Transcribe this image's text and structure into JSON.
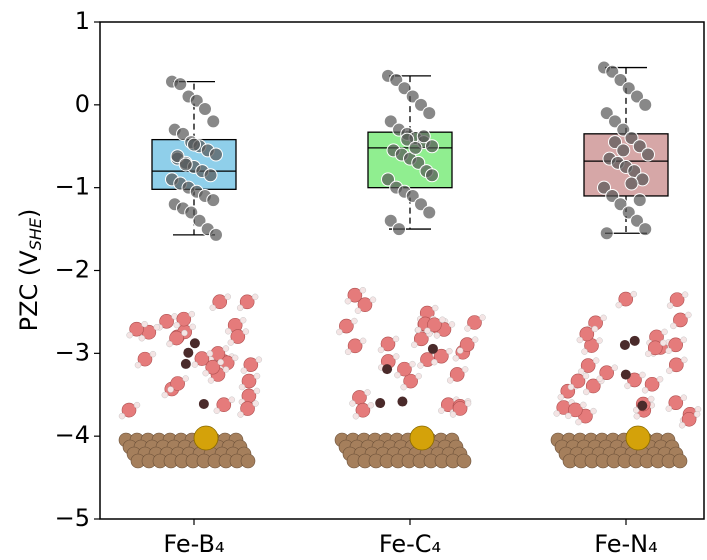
{
  "chart_data": {
    "type": "box",
    "y_label": "PZC (V",
    "y_label_sub": "SHE",
    "y_label_end": ")",
    "categories": [
      "Fe-B₄",
      "Fe-C₄",
      "Fe-N₄"
    ],
    "ylim": [
      -5,
      1
    ],
    "yticks": [
      {
        "value": -5,
        "label": "−5"
      },
      {
        "value": -4,
        "label": "−4"
      },
      {
        "value": -3,
        "label": "−3"
      },
      {
        "value": -2,
        "label": "−2"
      },
      {
        "value": -1,
        "label": "−1"
      },
      0,
      1
    ],
    "point_color": "#555555",
    "boxes": [
      {
        "color": "#8fcfea",
        "whislo": -1.57,
        "q1": -1.02,
        "med": -0.8,
        "q3": -0.42,
        "whishi": 0.28,
        "points": [
          0.28,
          0.25,
          0.1,
          0.05,
          -0.05,
          -0.2,
          -0.3,
          -0.35,
          -0.45,
          -0.5,
          -0.55,
          -0.6,
          -0.65,
          -0.7,
          -0.75,
          -0.8,
          -0.85,
          -0.9,
          -0.95,
          -1.0,
          -1.05,
          -1.1,
          -1.15,
          -1.2,
          -1.25,
          -1.3,
          -1.4,
          -1.5,
          -1.57,
          -0.62,
          -0.72,
          -0.48
        ]
      },
      {
        "color": "#90ee90",
        "whislo": -1.5,
        "q1": -1.0,
        "med": -0.52,
        "q3": -0.33,
        "whishi": 0.35,
        "points": [
          0.35,
          0.3,
          0.2,
          0.1,
          0.0,
          -0.1,
          -0.2,
          -0.3,
          -0.35,
          -0.4,
          -0.45,
          -0.5,
          -0.55,
          -0.6,
          -0.65,
          -0.7,
          -0.8,
          -0.9,
          -1.0,
          -1.05,
          -1.1,
          -1.2,
          -1.3,
          -1.4,
          -1.5,
          -0.42,
          -0.52,
          -0.38,
          -0.85
        ]
      },
      {
        "color": "#d6a7a7",
        "whislo": -1.55,
        "q1": -1.1,
        "med": -0.68,
        "q3": -0.35,
        "whishi": 0.45,
        "points": [
          0.45,
          0.4,
          0.3,
          0.2,
          0.1,
          0.0,
          -0.1,
          -0.2,
          -0.3,
          -0.4,
          -0.5,
          -0.6,
          -0.65,
          -0.7,
          -0.75,
          -0.8,
          -0.9,
          -1.0,
          -1.1,
          -1.2,
          -1.3,
          -1.4,
          -1.5,
          -1.55,
          -0.45,
          -0.55,
          -0.95,
          -1.15
        ]
      }
    ]
  }
}
